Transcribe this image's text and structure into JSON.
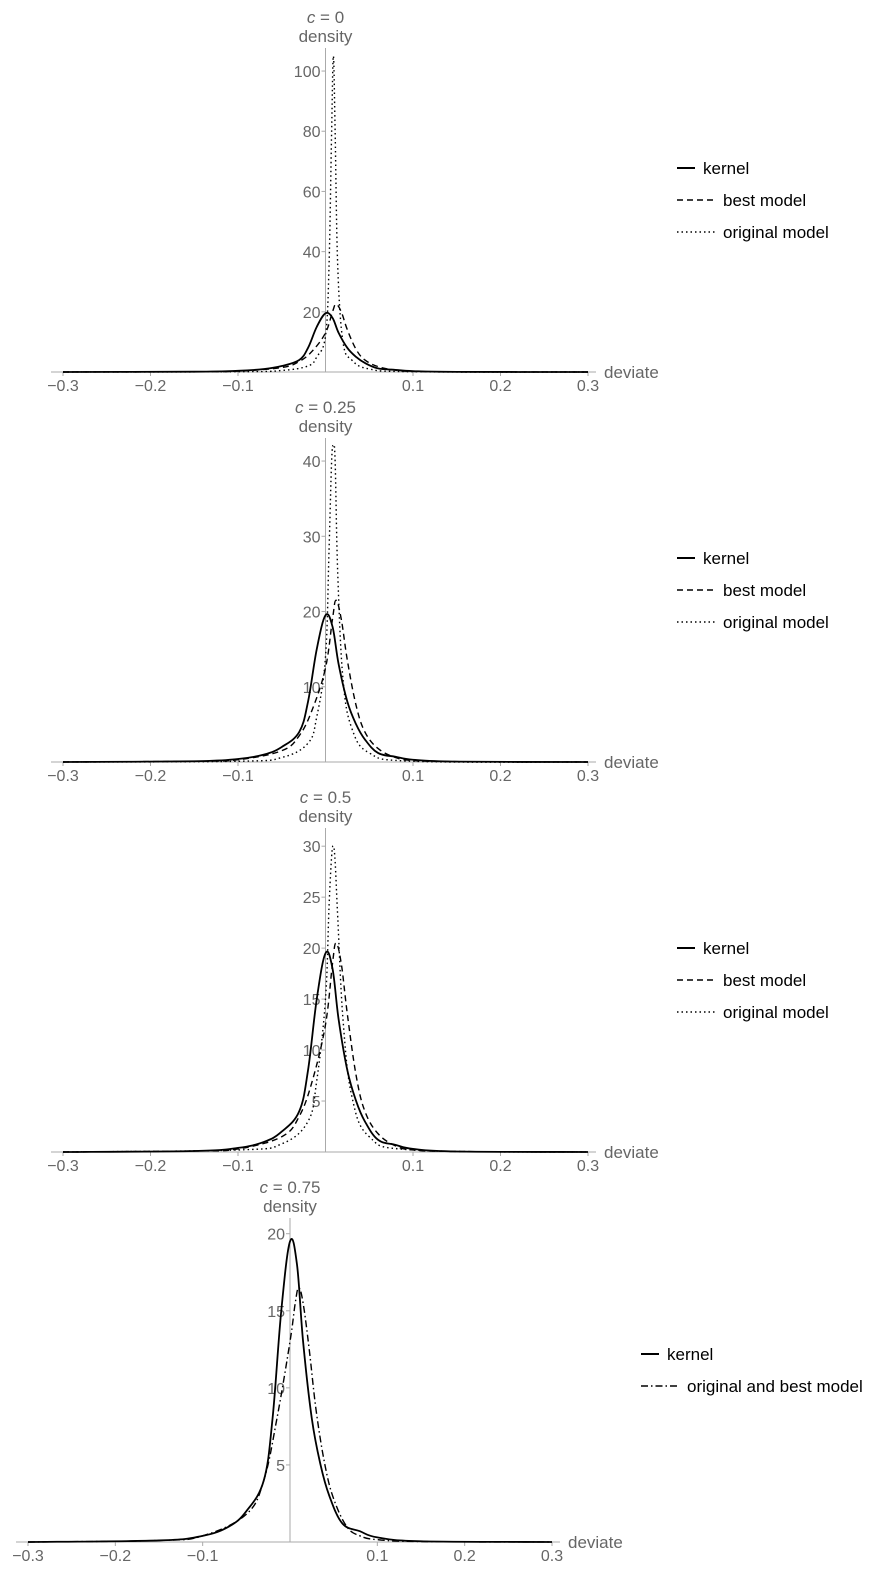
{
  "chart_data": [
    {
      "type": "line",
      "title": "c = 0",
      "title_prefix": "c",
      "title_value": "= 0",
      "ylabel": "density",
      "xlabel": "deviate",
      "xlim": [
        -0.3,
        0.3
      ],
      "ylim": [
        0,
        105
      ],
      "x_ticks": [
        "-0.3",
        "-0.2",
        "-0.1",
        "0.1",
        "0.2",
        "0.3"
      ],
      "y_ticks": [
        "20",
        "40",
        "60",
        "80",
        "100"
      ],
      "legend_position": "right",
      "series": [
        {
          "name": "kernel",
          "style": "solid",
          "x": [
            -0.3,
            -0.15,
            -0.1,
            -0.07,
            -0.05,
            -0.03,
            -0.02,
            -0.01,
            0.0,
            0.008,
            0.015,
            0.025,
            0.035,
            0.045,
            0.06,
            0.08,
            0.1,
            0.15,
            0.3
          ],
          "y": [
            0,
            0.1,
            0.4,
            1.0,
            2.0,
            4.0,
            8.0,
            15.0,
            19.5,
            18.0,
            13.0,
            8.0,
            5.0,
            3.0,
            1.2,
            0.7,
            0.3,
            0.05,
            0
          ]
        },
        {
          "name": "best model",
          "style": "dashed",
          "x": [
            -0.3,
            -0.15,
            -0.1,
            -0.05,
            -0.03,
            -0.015,
            0.0,
            0.008,
            0.012,
            0.018,
            0.025,
            0.035,
            0.045,
            0.06,
            0.08,
            0.1,
            0.15,
            0.3
          ],
          "y": [
            0,
            0.1,
            0.3,
            1.5,
            3.5,
            7.0,
            13.0,
            20.0,
            22.5,
            20.0,
            14.0,
            7.5,
            4.0,
            1.8,
            0.6,
            0.2,
            0.05,
            0
          ]
        },
        {
          "name": "original model",
          "style": "dotted",
          "x": [
            -0.3,
            -0.1,
            -0.05,
            -0.02,
            -0.01,
            0.0,
            0.004,
            0.007,
            0.009,
            0.011,
            0.014,
            0.02,
            0.03,
            0.05,
            0.1,
            0.3
          ],
          "y": [
            0,
            0.1,
            0.5,
            2.0,
            5.0,
            12.0,
            35.0,
            80.0,
            105.0,
            80.0,
            35.0,
            10.0,
            4.0,
            1.0,
            0.1,
            0
          ]
        }
      ]
    },
    {
      "type": "line",
      "title": "c = 0.25",
      "title_prefix": "c",
      "title_value": "= 0.25",
      "ylabel": "density",
      "xlabel": "deviate",
      "xlim": [
        -0.3,
        0.3
      ],
      "ylim": [
        0,
        42
      ],
      "x_ticks": [
        "-0.3",
        "-0.2",
        "-0.1",
        "0.1",
        "0.2",
        "0.3"
      ],
      "y_ticks": [
        "10",
        "20",
        "30",
        "40"
      ],
      "legend_position": "right",
      "series": [
        {
          "name": "kernel",
          "style": "solid",
          "x": [
            -0.3,
            -0.15,
            -0.1,
            -0.07,
            -0.05,
            -0.03,
            -0.02,
            -0.01,
            0.0,
            0.008,
            0.015,
            0.025,
            0.035,
            0.045,
            0.06,
            0.08,
            0.1,
            0.15,
            0.3
          ],
          "y": [
            0,
            0.1,
            0.4,
            1.0,
            2.0,
            4.0,
            8.0,
            15.0,
            19.5,
            18.0,
            13.0,
            8.0,
            5.0,
            3.0,
            1.2,
            0.7,
            0.3,
            0.05,
            0
          ]
        },
        {
          "name": "best model",
          "style": "dashed",
          "x": [
            -0.3,
            -0.15,
            -0.1,
            -0.05,
            -0.03,
            -0.015,
            0.0,
            0.008,
            0.012,
            0.018,
            0.025,
            0.035,
            0.045,
            0.06,
            0.08,
            0.1,
            0.15,
            0.3
          ],
          "y": [
            0,
            0.1,
            0.3,
            1.5,
            3.5,
            7.0,
            12.5,
            19.0,
            21.5,
            19.0,
            13.5,
            7.5,
            4.0,
            1.8,
            0.6,
            0.2,
            0.05,
            0
          ]
        },
        {
          "name": "original model",
          "style": "dotted",
          "x": [
            -0.3,
            -0.1,
            -0.05,
            -0.02,
            -0.01,
            0.0,
            0.004,
            0.007,
            0.009,
            0.011,
            0.014,
            0.02,
            0.03,
            0.05,
            0.1,
            0.3
          ],
          "y": [
            0,
            0.1,
            0.6,
            2.5,
            6.0,
            14.0,
            28.0,
            40.0,
            42.0,
            40.0,
            25.0,
            11.0,
            4.5,
            1.2,
            0.1,
            0
          ]
        }
      ]
    },
    {
      "type": "line",
      "title": "c = 0.5",
      "title_prefix": "c",
      "title_value": "= 0.5",
      "ylabel": "density",
      "xlabel": "deviate",
      "xlim": [
        -0.3,
        0.3
      ],
      "ylim": [
        0,
        31
      ],
      "x_ticks": [
        "-0.3",
        "-0.2",
        "-0.1",
        "0.1",
        "0.2",
        "0.3"
      ],
      "y_ticks": [
        "5",
        "10",
        "15",
        "20",
        "25",
        "30"
      ],
      "legend_position": "right",
      "series": [
        {
          "name": "kernel",
          "style": "solid",
          "x": [
            -0.3,
            -0.15,
            -0.1,
            -0.07,
            -0.05,
            -0.03,
            -0.02,
            -0.01,
            0.0,
            0.008,
            0.015,
            0.025,
            0.035,
            0.045,
            0.06,
            0.08,
            0.1,
            0.15,
            0.3
          ],
          "y": [
            0,
            0.1,
            0.4,
            1.0,
            2.0,
            4.0,
            8.0,
            15.0,
            19.5,
            18.0,
            13.0,
            8.0,
            5.0,
            3.0,
            1.2,
            0.7,
            0.3,
            0.05,
            0
          ]
        },
        {
          "name": "best model",
          "style": "dashed",
          "x": [
            -0.3,
            -0.15,
            -0.1,
            -0.05,
            -0.03,
            -0.015,
            0.0,
            0.008,
            0.012,
            0.018,
            0.025,
            0.035,
            0.045,
            0.06,
            0.08,
            0.1,
            0.15,
            0.3
          ],
          "y": [
            0,
            0.1,
            0.3,
            1.5,
            3.5,
            7.0,
            12.5,
            18.5,
            20.5,
            18.5,
            13.5,
            7.5,
            4.0,
            1.8,
            0.6,
            0.2,
            0.05,
            0
          ]
        },
        {
          "name": "original model",
          "style": "dotted",
          "x": [
            -0.3,
            -0.1,
            -0.05,
            -0.02,
            -0.01,
            0.0,
            0.004,
            0.007,
            0.009,
            0.011,
            0.014,
            0.02,
            0.03,
            0.05,
            0.1,
            0.3
          ],
          "y": [
            0,
            0.2,
            0.8,
            3.0,
            7.0,
            15.0,
            24.0,
            29.0,
            30.0,
            28.5,
            23.0,
            13.0,
            5.5,
            1.5,
            0.2,
            0
          ]
        }
      ]
    },
    {
      "type": "line",
      "title": "c = 0.75",
      "title_prefix": "c",
      "title_value": "= 0.75",
      "ylabel": "density",
      "xlabel": "deviate",
      "xlim": [
        -0.3,
        0.3
      ],
      "ylim": [
        0,
        20.5
      ],
      "x_ticks": [
        "-0.3",
        "-0.2",
        "-0.1",
        "0.1",
        "0.2",
        "0.3"
      ],
      "y_ticks": [
        "5",
        "10",
        "15",
        "20"
      ],
      "legend_position": "right",
      "series": [
        {
          "name": "kernel",
          "style": "solid",
          "x": [
            -0.3,
            -0.15,
            -0.1,
            -0.07,
            -0.05,
            -0.03,
            -0.02,
            -0.01,
            0.0,
            0.008,
            0.015,
            0.025,
            0.035,
            0.045,
            0.06,
            0.08,
            0.1,
            0.15,
            0.3
          ],
          "y": [
            0,
            0.1,
            0.4,
            1.0,
            2.0,
            4.0,
            8.0,
            15.0,
            19.5,
            18.0,
            13.0,
            8.0,
            5.0,
            3.0,
            1.2,
            0.7,
            0.3,
            0.05,
            0
          ]
        },
        {
          "name": "original and best model",
          "style": "dashdot",
          "x": [
            -0.3,
            -0.15,
            -0.1,
            -0.05,
            -0.03,
            -0.015,
            0.0,
            0.006,
            0.01,
            0.015,
            0.022,
            0.03,
            0.04,
            0.05,
            0.065,
            0.08,
            0.1,
            0.15,
            0.3
          ],
          "y": [
            0,
            0.1,
            0.4,
            1.8,
            4.0,
            8.0,
            13.0,
            15.5,
            16.5,
            15.5,
            12.5,
            8.5,
            5.0,
            2.8,
            1.0,
            0.4,
            0.15,
            0.03,
            0
          ]
        }
      ]
    }
  ]
}
